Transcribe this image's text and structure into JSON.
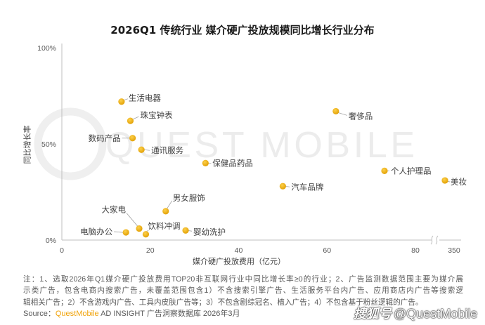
{
  "chart_data": {
    "type": "scatter",
    "title": "2026Q1 传统行业 媒介硬广投放规模同比增长行业分布",
    "xlabel": "媒介硬广投放费用（亿元）",
    "ylabel": "同比增长率",
    "xlim": [
      0,
      350
    ],
    "x_ticks": [
      0,
      20,
      40,
      60,
      80,
      350
    ],
    "x_break": [
      80,
      350
    ],
    "ylim": [
      0,
      100
    ],
    "y_ticks": [
      {
        "value": 100,
        "label": "100%"
      },
      {
        "value": 50,
        "label": "50%"
      },
      {
        "value": 0,
        "label": "0%"
      }
    ],
    "grid": false,
    "legend": false,
    "points": [
      {
        "name": "生活电器",
        "x": 13.5,
        "y": 72
      },
      {
        "name": "珠宝钟表",
        "x": 15.5,
        "y": 62
      },
      {
        "name": "数码产品",
        "x": 16,
        "y": 53
      },
      {
        "name": "通讯服务",
        "x": 18,
        "y": 47
      },
      {
        "name": "保健品药品",
        "x": 32.5,
        "y": 40
      },
      {
        "name": "奢侈品",
        "x": 62,
        "y": 67
      },
      {
        "name": "个人护理品",
        "x": 73,
        "y": 36
      },
      {
        "name": "美妆",
        "x": 340,
        "y": 31
      },
      {
        "name": "汽车品牌",
        "x": 50,
        "y": 28
      },
      {
        "name": "男女服饰",
        "x": 23.5,
        "y": 15
      },
      {
        "name": "大家电",
        "x": 17.5,
        "y": 6
      },
      {
        "name": "饮料冲调",
        "x": 19,
        "y": 3
      },
      {
        "name": "婴幼洗护",
        "x": 28,
        "y": 5
      },
      {
        "name": "电脑办公",
        "x": 14.5,
        "y": 4
      }
    ]
  },
  "footnote": {
    "lines": [
      "注：1、选取2026年Q1媒介硬广投放费用TOP20非互联网行业中同比增长率≥0的行业；2、广告监测数据范围主要为媒介展",
      "示类广告，包含电商内搜索广告，未覆盖范围包含1）不含搜索引擎广告、生活服务平台内广告、应用商店内广告等搜索逻",
      "辑相关广告；2）不含游戏内广告、工具内皮肤广告等；3）不包含剧综冠名、植入广告；4）不包含基于粉丝逻辑的广告。"
    ]
  },
  "source": {
    "prefix": "Source：",
    "brand": "QuestMobile",
    "text": " AD INSIGHT 广告洞察数据库 2026年3月"
  },
  "watermarks": {
    "background": "QUEST MOBILE",
    "platform": "搜狐号",
    "handle": "@QuestMobile"
  },
  "colors": {
    "point": "#F4B71A",
    "point_highlight": "#FCD04A",
    "point_edge": "#E3A106",
    "brand": "#F0A30A",
    "axis": "#BFBFBF",
    "text": "#404040",
    "watermark": "#ECECEC"
  }
}
